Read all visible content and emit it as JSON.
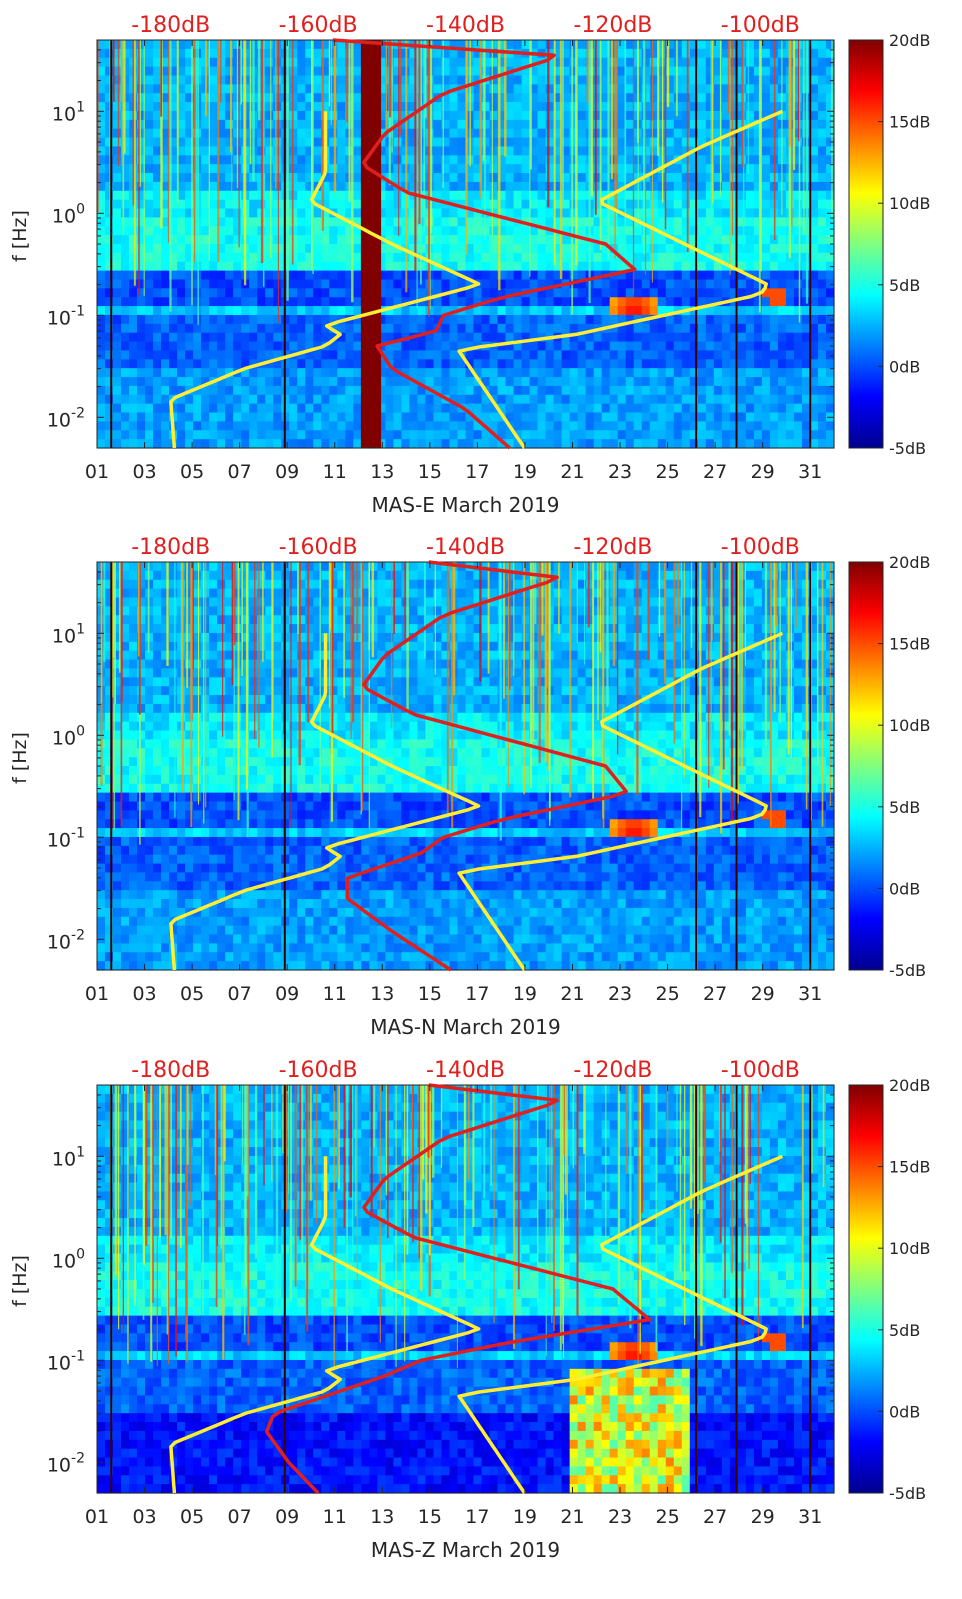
{
  "chart_data": [
    {
      "type": "heatmap",
      "title": "",
      "xlabel": "MAS-E March 2019",
      "ylabel": "f [Hz]",
      "x_ticks": [
        "01",
        "03",
        "05",
        "07",
        "09",
        "11",
        "13",
        "15",
        "17",
        "19",
        "21",
        "23",
        "25",
        "27",
        "29",
        "31"
      ],
      "x_range_days": [
        1,
        32
      ],
      "y_ticks": [
        {
          "label": "10",
          "exp": "1",
          "value": 10
        },
        {
          "label": "10",
          "exp": "0",
          "value": 1
        },
        {
          "label": "10",
          "exp": "-1",
          "value": 0.1
        },
        {
          "label": "10",
          "exp": "-2",
          "value": 0.01
        }
      ],
      "y_range_hz": [
        0.005,
        50
      ],
      "top_axis_labels": [
        "-180dB",
        "-160dB",
        "-140dB",
        "-120dB",
        "-100dB"
      ],
      "colorbar_labels": [
        "20dB",
        "15dB",
        "10dB",
        "5dB",
        "0dB",
        "-5dB"
      ],
      "colorbar_range_db": [
        -5,
        20
      ],
      "noise_models": {
        "yellow_low_model": [
          [
            0.005,
            -179.5
          ],
          [
            0.015,
            -180
          ],
          [
            0.03,
            -170
          ],
          [
            0.05,
            -159
          ],
          [
            0.065,
            -157
          ],
          [
            0.08,
            -159
          ],
          [
            0.2,
            -138
          ],
          [
            0.5,
            -150
          ],
          [
            1.3,
            -161
          ],
          [
            2.5,
            -159
          ],
          [
            10,
            -159
          ]
        ],
        "yellow_high_model": [
          [
            0.005,
            -132
          ],
          [
            0.046,
            -141
          ],
          [
            0.065,
            -125
          ],
          [
            0.16,
            -100
          ],
          [
            0.2,
            -99
          ],
          [
            1.3,
            -122
          ],
          [
            4.5,
            -108
          ],
          [
            10,
            -97
          ]
        ],
        "red_median": [
          [
            0.005,
            -134
          ],
          [
            0.012,
            -140
          ],
          [
            0.03,
            -150
          ],
          [
            0.05,
            -152
          ],
          [
            0.07,
            -144
          ],
          [
            0.1,
            -143
          ],
          [
            0.15,
            -135
          ],
          [
            0.28,
            -117
          ],
          [
            0.5,
            -121
          ],
          [
            1.6,
            -148
          ],
          [
            3,
            -154
          ],
          [
            6,
            -151
          ],
          [
            15,
            -143
          ],
          [
            35,
            -127
          ],
          [
            50,
            -158
          ]
        ]
      }
    },
    {
      "type": "heatmap",
      "title": "",
      "xlabel": "MAS-N March 2019",
      "ylabel": "f [Hz]",
      "x_ticks": [
        "01",
        "03",
        "05",
        "07",
        "09",
        "11",
        "13",
        "15",
        "17",
        "19",
        "21",
        "23",
        "25",
        "27",
        "29",
        "31"
      ],
      "x_range_days": [
        1,
        32
      ],
      "y_ticks": [
        {
          "label": "10",
          "exp": "1",
          "value": 10
        },
        {
          "label": "10",
          "exp": "0",
          "value": 1
        },
        {
          "label": "10",
          "exp": "-1",
          "value": 0.1
        },
        {
          "label": "10",
          "exp": "-2",
          "value": 0.01
        }
      ],
      "y_range_hz": [
        0.005,
        50
      ],
      "top_axis_labels": [
        "-180dB",
        "-160dB",
        "-140dB",
        "-120dB",
        "-100dB"
      ],
      "colorbar_labels": [
        "20dB",
        "15dB",
        "10dB",
        "5dB",
        "0dB",
        "-5dB"
      ],
      "colorbar_range_db": [
        -5,
        20
      ],
      "noise_models": {
        "yellow_low_model": [
          [
            0.005,
            -179.5
          ],
          [
            0.015,
            -180
          ],
          [
            0.03,
            -170
          ],
          [
            0.05,
            -159
          ],
          [
            0.065,
            -157
          ],
          [
            0.08,
            -159
          ],
          [
            0.2,
            -138
          ],
          [
            0.5,
            -150
          ],
          [
            1.3,
            -161
          ],
          [
            2.5,
            -159
          ],
          [
            10,
            -159
          ]
        ],
        "yellow_high_model": [
          [
            0.005,
            -132
          ],
          [
            0.046,
            -141
          ],
          [
            0.065,
            -125
          ],
          [
            0.16,
            -100
          ],
          [
            0.2,
            -99
          ],
          [
            1.3,
            -122
          ],
          [
            4.5,
            -108
          ],
          [
            10,
            -97
          ]
        ],
        "red_median": [
          [
            0.005,
            -142
          ],
          [
            0.012,
            -150
          ],
          [
            0.025,
            -156
          ],
          [
            0.04,
            -156
          ],
          [
            0.07,
            -146
          ],
          [
            0.1,
            -143
          ],
          [
            0.15,
            -135
          ],
          [
            0.27,
            -118
          ],
          [
            0.5,
            -121
          ],
          [
            1.6,
            -147
          ],
          [
            3,
            -154
          ],
          [
            6,
            -151
          ],
          [
            15,
            -143
          ],
          [
            35,
            -127
          ],
          [
            50,
            -145
          ]
        ]
      }
    },
    {
      "type": "heatmap",
      "title": "",
      "xlabel": "MAS-Z March 2019",
      "ylabel": "f [Hz]",
      "x_ticks": [
        "01",
        "03",
        "05",
        "07",
        "09",
        "11",
        "13",
        "15",
        "17",
        "19",
        "21",
        "23",
        "25",
        "27",
        "29",
        "31"
      ],
      "x_range_days": [
        1,
        32
      ],
      "y_ticks": [
        {
          "label": "10",
          "exp": "1",
          "value": 10
        },
        {
          "label": "10",
          "exp": "0",
          "value": 1
        },
        {
          "label": "10",
          "exp": "-1",
          "value": 0.1
        },
        {
          "label": "10",
          "exp": "-2",
          "value": 0.01
        }
      ],
      "y_range_hz": [
        0.005,
        50
      ],
      "top_axis_labels": [
        "-180dB",
        "-160dB",
        "-140dB",
        "-120dB",
        "-100dB"
      ],
      "colorbar_labels": [
        "20dB",
        "15dB",
        "10dB",
        "5dB",
        "0dB",
        "-5dB"
      ],
      "colorbar_range_db": [
        -5,
        20
      ],
      "noise_models": {
        "yellow_low_model": [
          [
            0.005,
            -179.5
          ],
          [
            0.015,
            -180
          ],
          [
            0.03,
            -170
          ],
          [
            0.05,
            -159
          ],
          [
            0.065,
            -157
          ],
          [
            0.08,
            -159
          ],
          [
            0.2,
            -138
          ],
          [
            0.5,
            -150
          ],
          [
            1.3,
            -161
          ],
          [
            2.5,
            -159
          ],
          [
            10,
            -159
          ]
        ],
        "yellow_high_model": [
          [
            0.005,
            -132
          ],
          [
            0.046,
            -141
          ],
          [
            0.065,
            -125
          ],
          [
            0.16,
            -100
          ],
          [
            0.2,
            -99
          ],
          [
            1.3,
            -122
          ],
          [
            4.5,
            -108
          ],
          [
            10,
            -97
          ]
        ],
        "red_median": [
          [
            0.005,
            -160
          ],
          [
            0.01,
            -164
          ],
          [
            0.02,
            -167
          ],
          [
            0.03,
            -166
          ],
          [
            0.07,
            -151
          ],
          [
            0.1,
            -146
          ],
          [
            0.15,
            -134
          ],
          [
            0.25,
            -115
          ],
          [
            0.5,
            -120
          ],
          [
            1.6,
            -147
          ],
          [
            3,
            -154
          ],
          [
            6,
            -151
          ],
          [
            15,
            -143
          ],
          [
            35,
            -127
          ],
          [
            50,
            -145
          ]
        ]
      }
    }
  ],
  "colors": {
    "db_label": "#e0201f",
    "yellow_line": "#ffee33",
    "red_line": "#e0201f"
  }
}
